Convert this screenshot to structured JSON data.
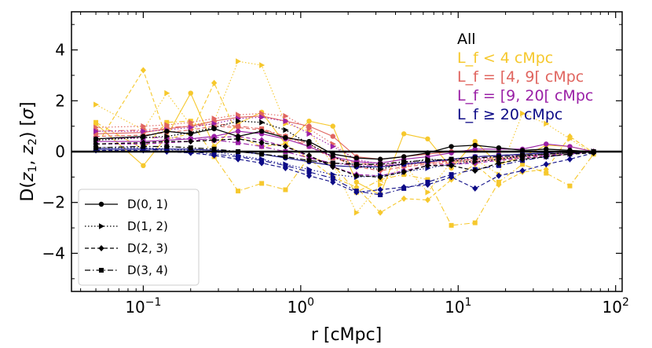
{
  "chart_data": {
    "type": "line",
    "xscale": "log",
    "xlim": [
      0.035,
      110
    ],
    "ylim": [
      -5.5,
      5.5
    ],
    "xlabel": "r [cMpc]",
    "ylabel": "D(z1, z2) [σ]",
    "xticks": [
      {
        "value": 0.1,
        "base": "10",
        "exp": "−1"
      },
      {
        "value": 1,
        "base": "10",
        "exp": "0"
      },
      {
        "value": 10,
        "base": "10",
        "exp": "1"
      },
      {
        "value": 100,
        "base": "10",
        "exp": "2"
      }
    ],
    "yticks": [
      -4,
      -2,
      0,
      2,
      4
    ],
    "ytick_labels": [
      "−4",
      "−2",
      "0",
      "2",
      "4"
    ],
    "reference_line_y": 0,
    "x": [
      0.05,
      0.0707,
      0.1,
      0.141,
      0.2,
      0.282,
      0.4,
      0.565,
      0.8,
      1.13,
      1.6,
      2.26,
      3.2,
      4.52,
      6.4,
      9.05,
      12.8,
      18.1,
      25.6,
      36.2,
      51.2,
      72.4
    ],
    "annotations": {
      "all": "All",
      "l1": "L_f < 4 cMpc",
      "l2": "L_f = [4, 9[ cMpc",
      "l3": "L_f = [9, 20[ cMpc",
      "l4": "L_f ≥ 20 cMpc"
    },
    "group_colors": {
      "all": "#000000",
      "l1": "#f6c82d",
      "l2": "#e0655f",
      "l3": "#9a1fa6",
      "l4": "#0c0a86"
    },
    "legend": {
      "placement": "lower-left",
      "entries": [
        {
          "label": "D(0, 1)",
          "dash": "solid",
          "marker": "circle"
        },
        {
          "label": "D(1, 2)",
          "dash": "dotted",
          "marker": "triangle-right"
        },
        {
          "label": "D(2, 3)",
          "dash": "dashed",
          "marker": "diamond"
        },
        {
          "label": "D(3, 4)",
          "dash": "dashdot",
          "marker": "square"
        }
      ]
    },
    "series": [
      {
        "name": "All D(0,1)",
        "group": "all",
        "pair": "D(0, 1)",
        "x": [
          0.05,
          0.1,
          0.141,
          0.2,
          0.282,
          0.4,
          0.565,
          0.8,
          1.13,
          1.6,
          2.26,
          3.2,
          4.52,
          6.4,
          9.05,
          12.8,
          18.1,
          25.6,
          36.2,
          51.2,
          72.4
        ],
        "y": [
          0.5,
          0.6,
          0.8,
          0.7,
          0.9,
          0.6,
          0.8,
          0.55,
          0.4,
          -0.1,
          -0.25,
          -0.3,
          -0.2,
          -0.05,
          0.2,
          0.25,
          0.15,
          0.05,
          0.1,
          0.05,
          0.0
        ]
      },
      {
        "name": "All D(1,2)",
        "group": "all",
        "pair": "D(1, 2)",
        "x": [
          0.05,
          0.1,
          0.141,
          0.2,
          0.282,
          0.4,
          0.565,
          0.8,
          1.13,
          1.6,
          2.26,
          3.2,
          4.52,
          6.4,
          9.05,
          12.8,
          18.1,
          25.6,
          36.2,
          51.2,
          72.4
        ],
        "y": [
          0.45,
          0.55,
          0.6,
          0.75,
          0.95,
          1.2,
          1.15,
          0.85,
          0.3,
          -0.2,
          -0.55,
          -0.7,
          -0.45,
          -0.3,
          -0.35,
          -0.4,
          -0.3,
          -0.15,
          -0.1,
          -0.05,
          0.0
        ]
      },
      {
        "name": "All D(2,3)",
        "group": "all",
        "pair": "D(2, 3)",
        "x": [
          0.05,
          0.1,
          0.141,
          0.2,
          0.282,
          0.4,
          0.565,
          0.8,
          1.13,
          1.6,
          2.26,
          3.2,
          4.52,
          6.4,
          9.05,
          12.8,
          18.1,
          25.6,
          36.2,
          51.2,
          72.4
        ],
        "y": [
          0.3,
          0.35,
          0.4,
          0.4,
          0.45,
          0.5,
          0.35,
          0.2,
          -0.15,
          -0.6,
          -0.95,
          -1.0,
          -0.8,
          -0.55,
          -0.55,
          -0.75,
          -0.45,
          -0.3,
          -0.2,
          -0.1,
          -0.05
        ]
      },
      {
        "name": "All D(3,4)",
        "group": "all",
        "pair": "D(3, 4)",
        "x": [
          0.05,
          0.1,
          0.141,
          0.2,
          0.282,
          0.4,
          0.565,
          0.8,
          1.13,
          1.6,
          2.26,
          3.2,
          4.52,
          6.4,
          9.05,
          12.8,
          18.1,
          25.6,
          36.2,
          51.2,
          72.4
        ],
        "y": [
          0.15,
          0.2,
          0.2,
          0.15,
          0.1,
          0.0,
          -0.1,
          -0.2,
          -0.35,
          -0.45,
          -0.5,
          -0.5,
          -0.4,
          -0.35,
          -0.3,
          -0.25,
          -0.2,
          -0.15,
          -0.1,
          -0.05,
          0.0
        ]
      },
      {
        "name": "Lf<4 D(0,1)",
        "group": "l1",
        "pair": "D(0, 1)",
        "x": [
          0.05,
          0.1,
          0.141,
          0.2,
          0.282,
          0.4,
          0.565,
          0.8,
          1.13,
          1.6,
          2.26,
          3.2,
          4.52,
          6.4,
          9.05,
          12.8,
          18.1,
          25.6,
          36.2,
          51.2,
          72.4
        ],
        "y": [
          1.1,
          -0.55,
          0.6,
          2.3,
          0.2,
          1.1,
          1.55,
          0.3,
          1.2,
          1.0,
          -1.2,
          -1.7,
          0.7,
          0.5,
          -0.65,
          0.4,
          -0.5,
          -0.2,
          0.25,
          0.2,
          0.0
        ]
      },
      {
        "name": "Lf<4 D(1,2)",
        "group": "l1",
        "pair": "D(1, 2)",
        "x": [
          0.05,
          0.1,
          0.141,
          0.2,
          0.282,
          0.4,
          0.565,
          0.8,
          1.13,
          1.6,
          2.26,
          3.2,
          4.52,
          6.4,
          9.05,
          12.8,
          18.1,
          25.6,
          36.2,
          51.2,
          72.4
        ],
        "y": [
          1.85,
          0.85,
          2.3,
          1.05,
          1.2,
          3.55,
          3.4,
          1.1,
          0.8,
          -0.5,
          -2.4,
          -1.3,
          -0.5,
          -1.6,
          -0.4,
          -0.3,
          -0.9,
          1.5,
          1.1,
          0.5,
          -0.1
        ]
      },
      {
        "name": "Lf<4 D(2,3)",
        "group": "l1",
        "pair": "D(2, 3)",
        "x": [
          0.05,
          0.1,
          0.141,
          0.2,
          0.282,
          0.4,
          0.565,
          0.8,
          1.13,
          1.6,
          2.26,
          3.2,
          4.52,
          6.4,
          9.05,
          12.8,
          18.1,
          25.6,
          36.2,
          51.2,
          72.4
        ],
        "y": [
          0.2,
          3.2,
          0.5,
          0.7,
          2.7,
          0.6,
          0.2,
          0.3,
          -0.3,
          -1.0,
          -1.4,
          -2.4,
          -1.85,
          -1.9,
          -1.1,
          -0.5,
          -1.3,
          -0.8,
          -0.7,
          0.6,
          -0.05
        ]
      },
      {
        "name": "Lf<4 D(3,4)",
        "group": "l1",
        "pair": "D(3, 4)",
        "x": [
          0.05,
          0.1,
          0.141,
          0.2,
          0.282,
          0.4,
          0.565,
          0.8,
          1.13,
          1.6,
          2.26,
          3.2,
          4.52,
          6.4,
          9.05,
          12.8,
          18.1,
          25.6,
          36.2,
          51.2,
          72.4
        ],
        "y": [
          1.15,
          0.1,
          1.15,
          1.2,
          -0.2,
          -1.55,
          -1.25,
          -1.5,
          -0.2,
          -0.5,
          -1.6,
          -1.1,
          -0.9,
          -1.1,
          -2.9,
          -2.8,
          -1.2,
          -0.5,
          -0.85,
          -1.35,
          -0.1
        ]
      },
      {
        "name": "Lf 4-9 D(0,1)",
        "group": "l2",
        "pair": "D(0, 1)",
        "x": [
          0.05,
          0.1,
          0.141,
          0.2,
          0.282,
          0.4,
          0.565,
          0.8,
          1.13,
          1.6,
          2.26,
          3.2,
          4.52,
          6.4,
          9.05,
          12.8,
          18.1,
          25.6,
          36.2,
          51.2,
          72.4
        ],
        "y": [
          0.7,
          0.75,
          0.9,
          1.0,
          1.2,
          1.35,
          1.4,
          1.2,
          1.0,
          0.6,
          -0.2,
          -0.3,
          -0.2,
          -0.1,
          0.0,
          0.05,
          0.0,
          0.0,
          0.0,
          0.0,
          0.0
        ]
      },
      {
        "name": "Lf 4-9 D(1,2)",
        "group": "l2",
        "pair": "D(1, 2)",
        "x": [
          0.05,
          0.1,
          0.141,
          0.2,
          0.282,
          0.4,
          0.565,
          0.8,
          1.13,
          1.6,
          2.26,
          3.2,
          4.52,
          6.4,
          9.05,
          12.8,
          18.1,
          25.6,
          36.2,
          51.2,
          72.4
        ],
        "y": [
          0.95,
          1.0,
          1.05,
          1.15,
          1.3,
          1.45,
          1.5,
          1.4,
          0.9,
          0.3,
          -0.35,
          -0.6,
          -0.55,
          -0.45,
          -0.4,
          -0.35,
          -0.3,
          -0.25,
          -0.2,
          -0.1,
          0.0
        ]
      },
      {
        "name": "Lf 4-9 D(2,3)",
        "group": "l2",
        "pair": "D(2, 3)",
        "x": [
          0.05,
          0.1,
          0.141,
          0.2,
          0.282,
          0.4,
          0.565,
          0.8,
          1.13,
          1.6,
          2.26,
          3.2,
          4.52,
          6.4,
          9.05,
          12.8,
          18.1,
          25.6,
          36.2,
          51.2,
          72.4
        ],
        "y": [
          0.6,
          0.65,
          0.75,
          0.85,
          1.0,
          0.95,
          0.85,
          0.6,
          0.3,
          -0.2,
          -0.6,
          -0.75,
          -0.6,
          -0.5,
          -0.45,
          -0.4,
          -0.3,
          -0.2,
          -0.15,
          -0.1,
          0.0
        ]
      },
      {
        "name": "Lf 4-9 D(3,4)",
        "group": "l2",
        "pair": "D(3, 4)",
        "x": [
          0.05,
          0.1,
          0.141,
          0.2,
          0.282,
          0.4,
          0.565,
          0.8,
          1.13,
          1.6,
          2.26,
          3.2,
          4.52,
          6.4,
          9.05,
          12.8,
          18.1,
          25.6,
          36.2,
          51.2,
          72.4
        ],
        "y": [
          0.8,
          0.85,
          0.95,
          1.0,
          1.1,
          1.0,
          0.9,
          0.6,
          0.2,
          -0.25,
          -0.45,
          -0.55,
          -0.5,
          -0.45,
          -0.35,
          -0.3,
          -0.25,
          -0.2,
          -0.1,
          -0.05,
          0.0
        ]
      },
      {
        "name": "Lf 9-20 D(0,1)",
        "group": "l3",
        "pair": "D(0, 1)",
        "x": [
          0.05,
          0.1,
          0.141,
          0.2,
          0.282,
          0.4,
          0.565,
          0.8,
          1.13,
          1.6,
          2.26,
          3.2,
          4.52,
          6.4,
          9.05,
          12.8,
          18.1,
          25.6,
          36.2,
          51.2,
          72.4
        ],
        "y": [
          0.4,
          0.4,
          0.45,
          0.5,
          0.6,
          0.8,
          0.7,
          0.5,
          0.2,
          -0.2,
          -0.4,
          -0.45,
          -0.3,
          -0.2,
          -0.05,
          0.1,
          0.1,
          0.1,
          0.3,
          0.2,
          0.0
        ]
      },
      {
        "name": "Lf 9-20 D(1,2)",
        "group": "l3",
        "pair": "D(1, 2)",
        "x": [
          0.05,
          0.1,
          0.141,
          0.2,
          0.282,
          0.4,
          0.565,
          0.8,
          1.13,
          1.6,
          2.26,
          3.2,
          4.52,
          6.4,
          9.05,
          12.8,
          18.1,
          25.6,
          36.2,
          51.2,
          72.4
        ],
        "y": [
          0.8,
          0.8,
          0.85,
          0.95,
          1.1,
          1.3,
          1.35,
          1.2,
          0.7,
          0.2,
          -0.3,
          -0.5,
          -0.45,
          -0.4,
          -0.35,
          -0.3,
          -0.2,
          -0.15,
          -0.1,
          -0.05,
          0.0
        ]
      },
      {
        "name": "Lf 9-20 D(2,3)",
        "group": "l3",
        "pair": "D(2, 3)",
        "x": [
          0.05,
          0.1,
          0.141,
          0.2,
          0.282,
          0.4,
          0.565,
          0.8,
          1.13,
          1.6,
          2.26,
          3.2,
          4.52,
          6.4,
          9.05,
          12.8,
          18.1,
          25.6,
          36.2,
          51.2,
          72.4
        ],
        "y": [
          0.3,
          0.3,
          0.35,
          0.4,
          0.55,
          0.6,
          0.45,
          0.2,
          -0.2,
          -0.6,
          -0.9,
          -0.95,
          -0.75,
          -0.55,
          -0.5,
          -0.45,
          -0.35,
          -0.25,
          -0.15,
          -0.1,
          0.0
        ]
      },
      {
        "name": "Lf 9-20 D(3,4)",
        "group": "l3",
        "pair": "D(3, 4)",
        "x": [
          0.05,
          0.1,
          0.141,
          0.2,
          0.282,
          0.4,
          0.565,
          0.8,
          1.13,
          1.6,
          2.26,
          3.2,
          4.52,
          6.4,
          9.05,
          12.8,
          18.1,
          25.6,
          36.2,
          51.2,
          72.4
        ],
        "y": [
          0.5,
          0.55,
          0.55,
          0.5,
          0.45,
          0.35,
          0.2,
          0.0,
          -0.25,
          -0.45,
          -0.55,
          -0.55,
          -0.5,
          -0.4,
          -0.3,
          -0.2,
          -0.15,
          -0.1,
          -0.05,
          0.0,
          0.0
        ]
      },
      {
        "name": "Lf>=20 D(0,1)",
        "group": "l4",
        "pair": "D(0, 1)",
        "x": [
          0.05,
          0.1,
          0.141,
          0.2,
          0.282,
          0.4,
          0.565,
          0.8,
          1.13,
          1.6,
          2.26,
          3.2,
          4.52,
          6.4,
          9.05,
          12.8,
          18.1,
          25.6,
          36.2,
          51.2,
          72.4
        ],
        "y": [
          0.1,
          0.1,
          0.1,
          0.1,
          0.05,
          0.0,
          -0.1,
          -0.25,
          -0.4,
          -0.55,
          -0.6,
          -0.6,
          -0.5,
          -0.4,
          -0.3,
          -0.2,
          -0.15,
          -0.1,
          -0.05,
          0.0,
          0.0
        ]
      },
      {
        "name": "Lf>=20 D(1,2)",
        "group": "l4",
        "pair": "D(1, 2)",
        "x": [
          0.05,
          0.1,
          0.141,
          0.2,
          0.282,
          0.4,
          0.565,
          0.8,
          1.13,
          1.6,
          2.26,
          3.2,
          4.52,
          6.4,
          9.05,
          12.8,
          18.1,
          25.6,
          36.2,
          51.2,
          72.4
        ],
        "y": [
          0.15,
          0.15,
          0.1,
          0.05,
          0.0,
          -0.15,
          -0.3,
          -0.5,
          -0.7,
          -0.9,
          -1.0,
          -0.95,
          -0.8,
          -0.65,
          -0.5,
          -0.4,
          -0.3,
          -0.2,
          -0.1,
          -0.05,
          0.0
        ]
      },
      {
        "name": "Lf>=20 D(2,3)",
        "group": "l4",
        "pair": "D(2, 3)",
        "x": [
          0.05,
          0.1,
          0.141,
          0.2,
          0.282,
          0.4,
          0.565,
          0.8,
          1.13,
          1.6,
          2.26,
          3.2,
          4.52,
          6.4,
          9.05,
          12.8,
          18.1,
          25.6,
          36.2,
          51.2,
          72.4
        ],
        "y": [
          0.05,
          0.05,
          0.0,
          -0.05,
          -0.15,
          -0.3,
          -0.45,
          -0.65,
          -0.95,
          -1.2,
          -1.6,
          -1.5,
          -1.4,
          -1.3,
          -1.0,
          -1.45,
          -0.95,
          -0.75,
          -0.5,
          -0.3,
          -0.05
        ]
      },
      {
        "name": "Lf>=20 D(3,4)",
        "group": "l4",
        "pair": "D(3, 4)",
        "x": [
          0.05,
          0.1,
          0.141,
          0.2,
          0.282,
          0.4,
          0.565,
          0.8,
          1.13,
          1.6,
          2.26,
          3.2,
          4.52,
          6.4,
          9.05,
          12.8,
          18.1,
          25.6,
          36.2,
          51.2,
          72.4
        ],
        "y": [
          0.1,
          0.1,
          0.05,
          0.0,
          -0.1,
          -0.2,
          -0.35,
          -0.55,
          -0.8,
          -1.05,
          -1.55,
          -1.7,
          -1.45,
          -1.2,
          -0.9,
          -0.7,
          -0.55,
          -0.35,
          -0.2,
          -0.1,
          0.0
        ]
      }
    ]
  }
}
